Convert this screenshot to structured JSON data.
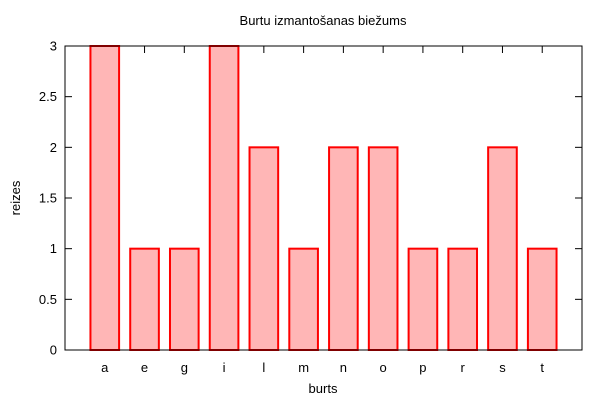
{
  "chart_data": {
    "type": "bar",
    "title": "Burtu izmantošanas biežums",
    "xlabel": "burts",
    "ylabel": "reizes",
    "categories": [
      "a",
      "e",
      "g",
      "i",
      "l",
      "m",
      "n",
      "o",
      "p",
      "r",
      "s",
      "t"
    ],
    "values": [
      3,
      1,
      1,
      3,
      2,
      1,
      2,
      2,
      1,
      1,
      2,
      1
    ],
    "ylim": [
      0,
      3
    ],
    "yticks": [
      "0",
      "0.5",
      "1",
      "1.5",
      "2",
      "2.5",
      "3"
    ],
    "grid": false,
    "bar_fill": "#ffb6b6",
    "bar_stroke": "#ff0000"
  }
}
